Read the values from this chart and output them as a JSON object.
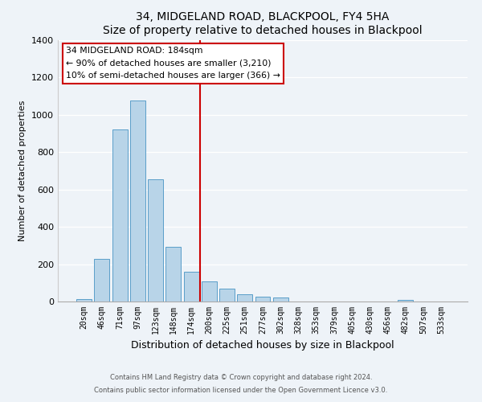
{
  "title": "34, MIDGELAND ROAD, BLACKPOOL, FY4 5HA",
  "subtitle": "Size of property relative to detached houses in Blackpool",
  "xlabel": "Distribution of detached houses by size in Blackpool",
  "ylabel": "Number of detached properties",
  "bar_labels": [
    "20sqm",
    "46sqm",
    "71sqm",
    "97sqm",
    "123sqm",
    "148sqm",
    "174sqm",
    "200sqm",
    "225sqm",
    "251sqm",
    "277sqm",
    "302sqm",
    "328sqm",
    "353sqm",
    "379sqm",
    "405sqm",
    "430sqm",
    "456sqm",
    "482sqm",
    "507sqm",
    "533sqm"
  ],
  "bar_values": [
    15,
    228,
    920,
    1075,
    655,
    293,
    158,
    108,
    70,
    38,
    25,
    20,
    0,
    0,
    0,
    0,
    0,
    0,
    10,
    0,
    0
  ],
  "bar_color": "#b8d4e8",
  "bar_edge_color": "#5a9ec9",
  "vline_color": "#cc0000",
  "annotation_title": "34 MIDGELAND ROAD: 184sqm",
  "annotation_line1": "← 90% of detached houses are smaller (3,210)",
  "annotation_line2": "10% of semi-detached houses are larger (366) →",
  "annotation_box_color": "#ffffff",
  "annotation_box_edge": "#cc0000",
  "ylim": [
    0,
    1400
  ],
  "yticks": [
    0,
    200,
    400,
    600,
    800,
    1000,
    1200,
    1400
  ],
  "footer1": "Contains HM Land Registry data © Crown copyright and database right 2024.",
  "footer2": "Contains public sector information licensed under the Open Government Licence v3.0.",
  "bg_color": "#eef3f8"
}
